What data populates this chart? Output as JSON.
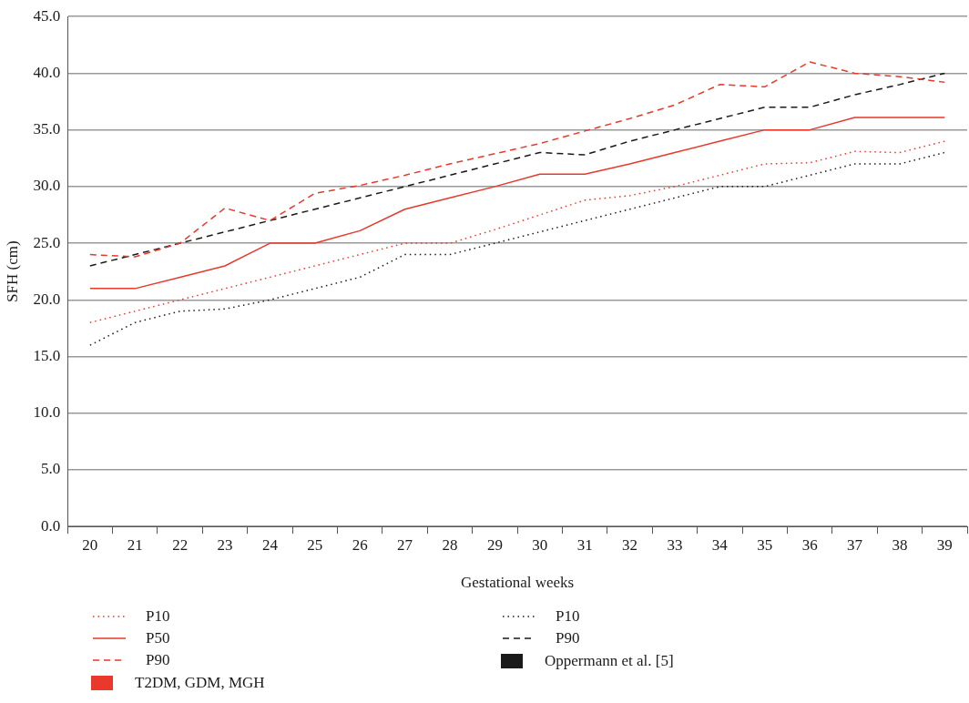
{
  "chart_data": {
    "type": "line",
    "xlabel": "Gestational weeks",
    "ylabel": "SFH (cm)",
    "categories": [
      "20",
      "21",
      "22",
      "23",
      "24",
      "25",
      "26",
      "27",
      "28",
      "29",
      "30",
      "31",
      "32",
      "33",
      "34",
      "35",
      "36",
      "37",
      "38",
      "39"
    ],
    "series": [
      {
        "name": "P10",
        "color": "#e8392c",
        "line_style": "dotted",
        "values": [
          18,
          19,
          20,
          21,
          22,
          23,
          24,
          25,
          25,
          26.2,
          27.5,
          28.8,
          29.2,
          30,
          31,
          32,
          32.1,
          33.1,
          33,
          34
        ]
      },
      {
        "name": "P50",
        "color": "#e8392c",
        "line_style": "solid",
        "values": [
          21,
          21,
          22,
          23,
          25,
          25,
          26.1,
          28,
          29,
          30,
          31.1,
          31.1,
          32,
          33,
          34,
          35,
          35,
          36.1,
          36.1,
          36.1
        ]
      },
      {
        "name": "P90",
        "color": "#e8392c",
        "line_style": "dashed",
        "values": [
          24,
          23.8,
          25,
          28.1,
          27,
          29.4,
          30.1,
          31,
          32,
          32.9,
          33.8,
          34.9,
          36,
          37.2,
          39,
          38.8,
          41,
          40,
          39.7,
          39.2
        ]
      },
      {
        "name": "P10",
        "color": "#1a1a1a",
        "line_style": "dotted",
        "values": [
          16,
          18,
          19,
          19.2,
          20,
          21,
          22,
          24,
          24,
          25,
          26,
          27,
          28,
          29,
          30,
          30,
          31,
          32,
          32,
          33
        ]
      },
      {
        "name": "P90",
        "color": "#1a1a1a",
        "line_style": "dashed",
        "values": [
          23,
          24,
          25,
          26,
          27,
          28,
          29,
          30,
          31,
          32,
          33,
          32.8,
          34,
          35,
          36,
          37,
          37,
          38.1,
          39,
          40
        ]
      }
    ],
    "annotations": [
      "T2DM, GDM, MGH",
      "Oppermann et al. [5]"
    ],
    "ylim": [
      0,
      45
    ],
    "yticks": [
      {
        "value": 0,
        "label": "0.0"
      },
      {
        "value": 5,
        "label": "5.0"
      },
      {
        "value": 10,
        "label": "10.0"
      },
      {
        "value": 15,
        "label": "15.0"
      },
      {
        "value": 20,
        "label": "20.0"
      },
      {
        "value": 25,
        "label": "25.0"
      },
      {
        "value": 30,
        "label": "30.0"
      },
      {
        "value": 35,
        "label": "35.0"
      },
      {
        "value": 40,
        "label": "40.0"
      },
      {
        "value": 45,
        "label": "45.0"
      }
    ],
    "grid": "y",
    "legend": "bottom",
    "marker": "none"
  }
}
